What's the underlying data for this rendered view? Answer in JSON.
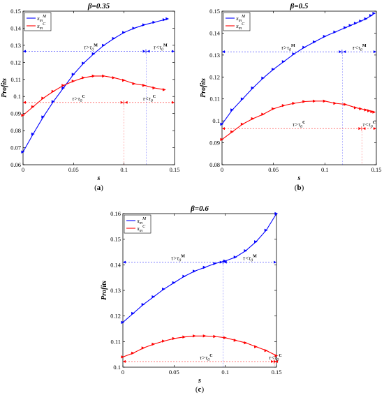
{
  "chart_data": [
    {
      "type": "line",
      "panel_caption": "a",
      "title": "β=0.35",
      "xlabel": "s",
      "ylabel": "Profits",
      "xlim": [
        0,
        0.15
      ],
      "ylim": [
        0.06,
        0.15
      ],
      "xticks": [
        "0",
        "0.05",
        "0.1",
        "0.15"
      ],
      "yticks": [
        "0.06",
        "0.07",
        "0.08",
        "0.09",
        "0.1",
        "0.11",
        "0.12",
        "0.13",
        "0.14",
        "0.15"
      ],
      "legend": {
        "placement": "top-left",
        "entries": [
          {
            "main": "π",
            "sub": "m",
            "sup": "M",
            "color": "#0000ff"
          },
          {
            "main": "π",
            "sub": "m",
            "sup": "C",
            "color": "#ff0000"
          }
        ]
      },
      "series": [
        {
          "key": "M",
          "color": "#0000ff",
          "x": [
            0,
            0.01,
            0.02,
            0.03,
            0.04,
            0.05,
            0.06,
            0.07,
            0.08,
            0.09,
            0.1,
            0.11,
            0.12,
            0.13,
            0.14,
            0.143
          ],
          "y": [
            0.0675,
            0.078,
            0.088,
            0.097,
            0.105,
            0.113,
            0.1195,
            0.125,
            0.13,
            0.134,
            0.1375,
            0.14,
            0.142,
            0.1435,
            0.145,
            0.1455
          ]
        },
        {
          "key": "C",
          "color": "#ff0000",
          "x": [
            0,
            0.01,
            0.02,
            0.03,
            0.04,
            0.05,
            0.06,
            0.07,
            0.08,
            0.09,
            0.1,
            0.11,
            0.12,
            0.13,
            0.14
          ],
          "y": [
            0.089,
            0.094,
            0.099,
            0.103,
            0.1065,
            0.109,
            0.111,
            0.112,
            0.112,
            0.111,
            0.1095,
            0.1075,
            0.1065,
            0.105,
            0.104
          ]
        }
      ],
      "thresholds": [
        {
          "y": 0.1265,
          "x": 0.122,
          "color": "#0000ff",
          "left_text": "τ>τ",
          "right_text": "τ<τ",
          "sub": "0",
          "sup": "M"
        },
        {
          "y": 0.0965,
          "x": 0.1,
          "color": "#ff0000",
          "left_text": "τ>τ",
          "right_text": "τ<τ",
          "sub": "0",
          "sup": "C"
        }
      ]
    },
    {
      "type": "line",
      "panel_caption": "b",
      "title": "β=0.5",
      "xlabel": "s",
      "ylabel": "Profits",
      "xlim": [
        0,
        0.15
      ],
      "ylim": [
        0.08,
        0.15
      ],
      "xticks": [
        "0",
        "0.05",
        "0.1",
        "0.15"
      ],
      "yticks": [
        "0.08",
        "0.09",
        "0.1",
        "0.11",
        "0.12",
        "0.13",
        "0.14",
        "0.15"
      ],
      "legend": {
        "placement": "top-left",
        "entries": [
          {
            "main": "π",
            "sub": "m",
            "sup": "M",
            "color": "#0000ff"
          },
          {
            "main": "π",
            "sub": "m",
            "sup": "C",
            "color": "#ff0000"
          }
        ]
      },
      "series": [
        {
          "key": "M",
          "color": "#0000ff",
          "x": [
            0,
            0.01,
            0.02,
            0.03,
            0.04,
            0.05,
            0.06,
            0.07,
            0.08,
            0.09,
            0.1,
            0.11,
            0.12,
            0.125,
            0.13,
            0.135,
            0.14,
            0.145,
            0.148
          ],
          "y": [
            0.0985,
            0.105,
            0.11,
            0.115,
            0.1195,
            0.1235,
            0.127,
            0.1305,
            0.1335,
            0.136,
            0.1385,
            0.1405,
            0.1425,
            0.1435,
            0.1445,
            0.1455,
            0.1465,
            0.148,
            0.149
          ]
        },
        {
          "key": "C",
          "color": "#ff0000",
          "x": [
            0,
            0.01,
            0.02,
            0.03,
            0.04,
            0.05,
            0.06,
            0.07,
            0.08,
            0.09,
            0.1,
            0.11,
            0.12,
            0.13,
            0.135,
            0.14,
            0.143,
            0.146,
            0.148
          ],
          "y": [
            0.0915,
            0.095,
            0.0985,
            0.101,
            0.103,
            0.1055,
            0.107,
            0.108,
            0.1088,
            0.109,
            0.109,
            0.108,
            0.1075,
            0.106,
            0.1055,
            0.105,
            0.1046,
            0.1042,
            0.104
          ]
        }
      ],
      "thresholds": [
        {
          "y": 0.1315,
          "x": 0.117,
          "color": "#0000ff",
          "left_text": "τ>τ",
          "right_text": "τ<τ",
          "sub": "0",
          "sup": "M"
        },
        {
          "y": 0.0965,
          "x": 0.136,
          "color": "#ff0000",
          "left_text": "τ>τ",
          "right_text": "τ<τ",
          "sub": "0",
          "sup": "C"
        }
      ]
    },
    {
      "type": "line",
      "panel_caption": "c",
      "title": "β=0.6",
      "xlabel": "s",
      "ylabel": "Profits",
      "xlim": [
        0,
        0.15
      ],
      "ylim": [
        0.1,
        0.16
      ],
      "xticks": [
        "0",
        "0.05",
        "0.1",
        "0.15"
      ],
      "yticks": [
        "0.1",
        "0.11",
        "0.12",
        "0.13",
        "0.14",
        "0.15",
        "0.16"
      ],
      "legend": {
        "placement": "top-left",
        "entries": [
          {
            "main": "π",
            "sub": "m",
            "sup": "M",
            "color": "#0000ff"
          },
          {
            "main": "π",
            "sub": "m",
            "sup": "C",
            "color": "#ff0000"
          }
        ]
      },
      "series": [
        {
          "key": "M",
          "color": "#0000ff",
          "x": [
            0,
            0.01,
            0.02,
            0.03,
            0.04,
            0.05,
            0.06,
            0.07,
            0.08,
            0.09,
            0.1,
            0.11,
            0.12,
            0.13,
            0.14,
            0.15
          ],
          "y": [
            0.1175,
            0.121,
            0.1245,
            0.1275,
            0.1305,
            0.133,
            0.1355,
            0.1375,
            0.139,
            0.1405,
            0.1415,
            0.143,
            0.1455,
            0.149,
            0.1535,
            0.16
          ]
        },
        {
          "key": "C",
          "color": "#ff0000",
          "x": [
            0,
            0.01,
            0.02,
            0.03,
            0.04,
            0.05,
            0.06,
            0.07,
            0.08,
            0.09,
            0.1,
            0.11,
            0.12,
            0.13,
            0.14,
            0.15
          ],
          "y": [
            0.104,
            0.1055,
            0.1075,
            0.109,
            0.1102,
            0.1112,
            0.1118,
            0.1122,
            0.1122,
            0.112,
            0.1115,
            0.1105,
            0.1095,
            0.108,
            0.1065,
            0.1045
          ]
        }
      ],
      "thresholds": [
        {
          "y": 0.141,
          "x": 0.098,
          "color": "#0000ff",
          "left_text": "τ>τ",
          "right_text": "τ<τ",
          "sub": "0",
          "sup": "M"
        },
        {
          "y": 0.1022,
          "x": 0.148,
          "color": "#ff0000",
          "left_text": "τ>τ",
          "right_text": "τ<τ",
          "sub": "0",
          "sup": "C"
        }
      ]
    }
  ]
}
